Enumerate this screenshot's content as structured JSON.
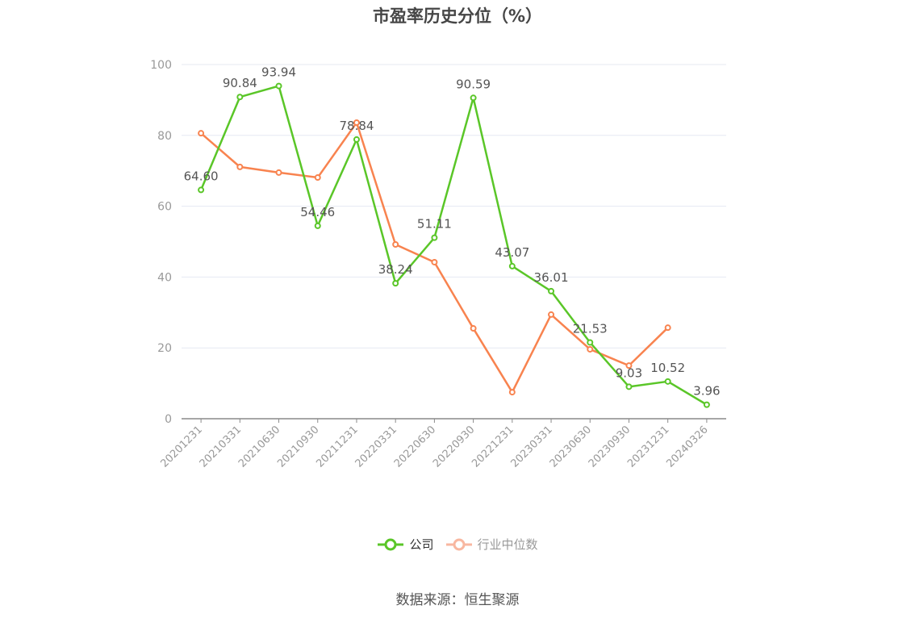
{
  "title": "市盈率历史分位（%）",
  "source": "数据来源：恒生聚源",
  "colors": {
    "company": "#5ac628",
    "industry": "#f8834f",
    "industry_legend": "#f8b7a0",
    "grid": "#e6e9f2",
    "axis": "#8a8a8a",
    "tick_label": "#999999",
    "data_label": "#555555"
  },
  "legend": [
    {
      "name": "公司",
      "icon": "circle-line-icon"
    },
    {
      "name": "行业中位数",
      "icon": "circle-line-icon"
    }
  ],
  "chart_data": {
    "type": "line",
    "title": "市盈率历史分位（%）",
    "xlabel": "",
    "ylabel": "",
    "ylim": [
      0,
      100
    ],
    "yticks": [
      0,
      20,
      40,
      60,
      80,
      100
    ],
    "grid": true,
    "legend_position": "bottom",
    "categories": [
      "20201231",
      "20210331",
      "20210630",
      "20210930",
      "20211231",
      "20220331",
      "20220630",
      "20220930",
      "20221231",
      "20230331",
      "20230630",
      "20230930",
      "20231231",
      "20240326"
    ],
    "series": [
      {
        "name": "公司",
        "values": [
          64.6,
          90.84,
          93.94,
          54.46,
          78.84,
          38.24,
          51.11,
          90.59,
          43.07,
          36.01,
          21.53,
          9.03,
          10.52,
          3.96
        ],
        "labels": true
      },
      {
        "name": "行业中位数",
        "values": [
          80.6,
          71.1,
          69.5,
          68.1,
          83.6,
          49.2,
          44.2,
          25.5,
          7.5,
          29.4,
          19.6,
          15.0,
          25.7,
          null
        ],
        "labels": false
      }
    ]
  }
}
